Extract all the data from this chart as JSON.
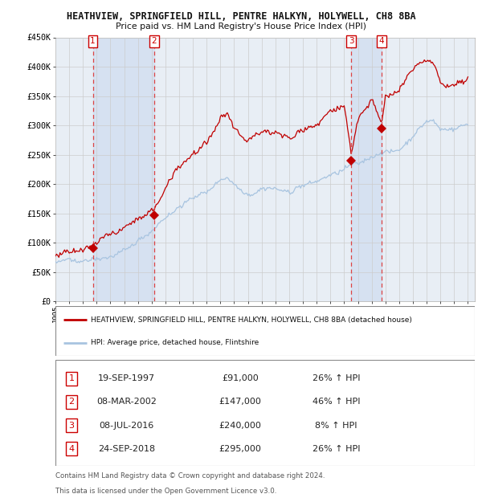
{
  "title": "HEATHVIEW, SPRINGFIELD HILL, PENTRE HALKYN, HOLYWELL, CH8 8BA",
  "subtitle": "Price paid vs. HM Land Registry's House Price Index (HPI)",
  "legend_line1": "HEATHVIEW, SPRINGFIELD HILL, PENTRE HALKYN, HOLYWELL, CH8 8BA (detached house)",
  "legend_line2": "HPI: Average price, detached house, Flintshire",
  "footer1": "Contains HM Land Registry data © Crown copyright and database right 2024.",
  "footer2": "This data is licensed under the Open Government Licence v3.0.",
  "ylim": [
    0,
    450000
  ],
  "yticks": [
    0,
    50000,
    100000,
    150000,
    200000,
    250000,
    300000,
    350000,
    400000,
    450000
  ],
  "ytick_labels": [
    "£0",
    "£50K",
    "£100K",
    "£150K",
    "£200K",
    "£250K",
    "£300K",
    "£350K",
    "£400K",
    "£450K"
  ],
  "sale_dates": [
    1997.72,
    2002.18,
    2016.52,
    2018.73
  ],
  "sale_prices": [
    91000,
    147000,
    240000,
    295000
  ],
  "sale_labels": [
    "1",
    "2",
    "3",
    "4"
  ],
  "sale_info": [
    {
      "num": "1",
      "date": "19-SEP-1997",
      "price": "£91,000",
      "hpi": "26% ↑ HPI"
    },
    {
      "num": "2",
      "date": "08-MAR-2002",
      "price": "£147,000",
      "hpi": "46% ↑ HPI"
    },
    {
      "num": "3",
      "date": "08-JUL-2016",
      "price": "£240,000",
      "hpi": "8% ↑ HPI"
    },
    {
      "num": "4",
      "date": "24-SEP-2018",
      "price": "£295,000",
      "hpi": "26% ↑ HPI"
    }
  ],
  "hpi_line_color": "#a8c4e0",
  "price_line_color": "#c00000",
  "dashed_line_color": "#dd4444",
  "marker_color": "#c00000",
  "background_color": "#ffffff",
  "chart_bg_color": "#e8eef5",
  "grid_color": "#cccccc",
  "shade_color": "#c8d8ee",
  "xmin": 1995.0,
  "xmax": 2025.5
}
